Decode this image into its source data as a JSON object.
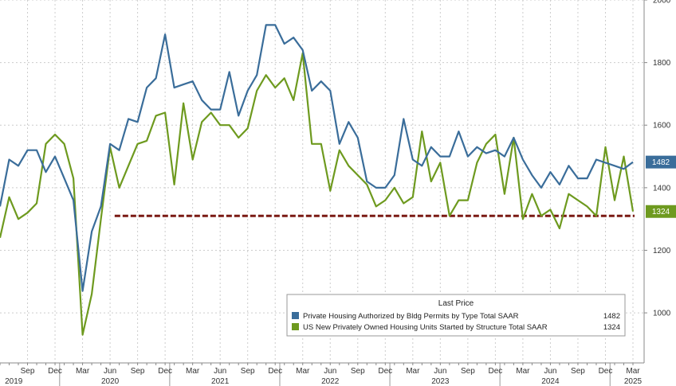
{
  "chart_data": {
    "type": "line",
    "title": "",
    "xlabel": "",
    "ylabel": "",
    "ylim": [
      840,
      2000
    ],
    "y_ticks": [
      1000,
      1200,
      1400,
      1600,
      1800,
      2000
    ],
    "x_start": "2019-06",
    "month_labels": [
      "Sep",
      "Dec",
      "Mar",
      "Jun",
      "Sep",
      "Dec",
      "Mar",
      "Jun",
      "Sep",
      "Dec",
      "Mar",
      "Jun",
      "Sep",
      "Dec",
      "Mar",
      "Jun",
      "Sep",
      "Dec",
      "Mar",
      "Jun",
      "Sep",
      "Dec",
      "Mar"
    ],
    "month_label_index": [
      3,
      6,
      9,
      12,
      15,
      18,
      21,
      24,
      27,
      30,
      33,
      36,
      39,
      42,
      45,
      48,
      51,
      54,
      57,
      60,
      63,
      66,
      69
    ],
    "year_labels": [
      "2019",
      "2020",
      "2021",
      "2022",
      "2023",
      "2024",
      "2025"
    ],
    "year_label_index": [
      1.5,
      12,
      24,
      36,
      48,
      60,
      69
    ],
    "reference_line": 1310,
    "legend_title": "Last Price",
    "series": [
      {
        "name": "Private Housing Authorized by Bldg Permits by Type Total SAAR",
        "color": "#3a6d9a",
        "last_value": "1482",
        "values": [
          1340,
          1490,
          1470,
          1520,
          1520,
          1450,
          1500,
          1430,
          1360,
          1070,
          1260,
          1340,
          1540,
          1520,
          1620,
          1610,
          1720,
          1750,
          1890,
          1720,
          1730,
          1740,
          1680,
          1650,
          1650,
          1770,
          1630,
          1710,
          1760,
          1920,
          1920,
          1860,
          1880,
          1840,
          1710,
          1740,
          1710,
          1540,
          1610,
          1560,
          1420,
          1400,
          1400,
          1440,
          1620,
          1490,
          1470,
          1530,
          1500,
          1500,
          1580,
          1500,
          1530,
          1510,
          1520,
          1500,
          1560,
          1490,
          1440,
          1400,
          1450,
          1410,
          1470,
          1430,
          1430,
          1490,
          1480,
          1470,
          1460,
          1482
        ]
      },
      {
        "name": "US New Privately Owned Housing Units Started by Structure Total SAAR",
        "color": "#6e9a1f",
        "last_value": "1324",
        "values": [
          1240,
          1370,
          1300,
          1320,
          1350,
          1540,
          1570,
          1540,
          1430,
          930,
          1060,
          1300,
          1530,
          1400,
          1470,
          1540,
          1550,
          1630,
          1640,
          1410,
          1670,
          1490,
          1610,
          1640,
          1600,
          1600,
          1560,
          1590,
          1710,
          1760,
          1720,
          1750,
          1680,
          1830,
          1540,
          1540,
          1390,
          1520,
          1470,
          1440,
          1410,
          1340,
          1360,
          1400,
          1350,
          1370,
          1580,
          1420,
          1480,
          1310,
          1360,
          1360,
          1480,
          1540,
          1570,
          1380,
          1560,
          1300,
          1380,
          1310,
          1330,
          1270,
          1380,
          1360,
          1340,
          1310,
          1530,
          1360,
          1500,
          1324
        ]
      }
    ]
  }
}
